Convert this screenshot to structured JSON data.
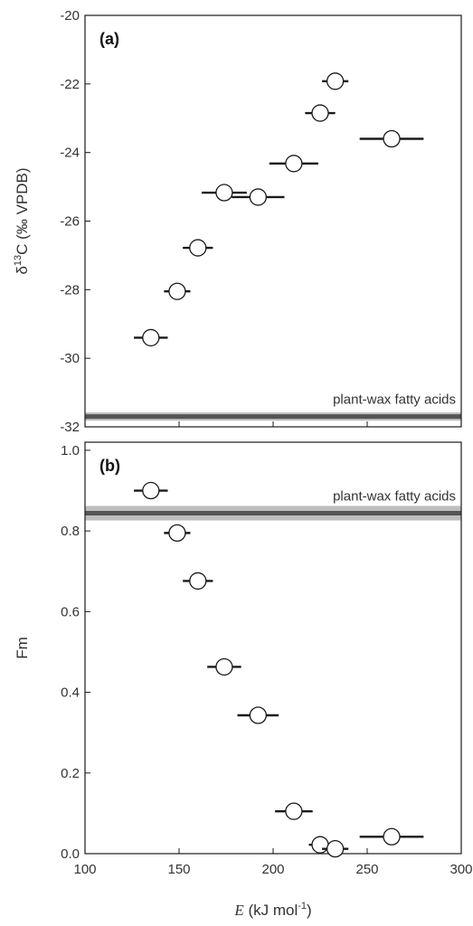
{
  "chart_data": [
    {
      "type": "scatter",
      "panel_label": "(a)",
      "ylabel": "δ¹³C (‰ VPDB)",
      "ylabel_parts": {
        "delta": "δ",
        "superscript": "13",
        "rest": "C (‰ VPDB)"
      },
      "ylim": [
        -32,
        -20
      ],
      "yticks": [
        -20,
        -22,
        -24,
        -26,
        -28,
        -30,
        -32
      ],
      "yticklabels": [
        "-20",
        "-22",
        "-24",
        "-26",
        "-28",
        "-30",
        "-32"
      ],
      "xlim": [
        100,
        300
      ],
      "grid": false,
      "reference_line": {
        "label": "plant-wax fatty acids",
        "value": -31.7,
        "band": 0.12
      },
      "points": [
        {
          "x": 135,
          "y": -29.4,
          "xerr": 9
        },
        {
          "x": 149,
          "y": -28.05,
          "xerr": 7
        },
        {
          "x": 160,
          "y": -26.78,
          "xerr": 8
        },
        {
          "x": 174,
          "y": -25.17,
          "xerr": 12
        },
        {
          "x": 192,
          "y": -25.3,
          "xerr": 14
        },
        {
          "x": 211,
          "y": -24.32,
          "xerr": 13
        },
        {
          "x": 225,
          "y": -22.85,
          "xerr": 8
        },
        {
          "x": 233,
          "y": -21.92,
          "xerr": 7
        },
        {
          "x": 263,
          "y": -23.6,
          "xerr": 17
        }
      ]
    },
    {
      "type": "scatter",
      "panel_label": "(b)",
      "ylabel": "Fm",
      "ylim": [
        0,
        1.02
      ],
      "yticks": [
        0,
        0.2,
        0.4,
        0.6,
        0.8,
        1.0
      ],
      "yticklabels": [
        "0.0",
        "0.2",
        "0.4",
        "0.6",
        "0.8",
        "1.0"
      ],
      "xlim": [
        100,
        300
      ],
      "xticks": [
        100,
        150,
        200,
        250,
        300
      ],
      "xticklabels": [
        "100",
        "150",
        "200",
        "250",
        "300"
      ],
      "xlabel": "E (kJ mol⁻¹)",
      "xlabel_parts": {
        "var": "E",
        "unit": " (kJ mol",
        "superscript": "-1",
        "close": ")"
      },
      "grid": false,
      "reference_line": {
        "label": "plant-wax fatty acids",
        "value": 0.844,
        "band": 0.018
      },
      "points": [
        {
          "x": 135,
          "y": 0.9,
          "xerr": 9
        },
        {
          "x": 149,
          "y": 0.795,
          "xerr": 7
        },
        {
          "x": 160,
          "y": 0.676,
          "xerr": 8
        },
        {
          "x": 174,
          "y": 0.463,
          "xerr": 9
        },
        {
          "x": 192,
          "y": 0.343,
          "xerr": 11
        },
        {
          "x": 211,
          "y": 0.105,
          "xerr": 10
        },
        {
          "x": 225,
          "y": 0.022,
          "xerr": 6
        },
        {
          "x": 233,
          "y": 0.012,
          "xerr": 7
        },
        {
          "x": 263,
          "y": 0.042,
          "xerr": 17
        }
      ]
    }
  ],
  "colors": {
    "axis": "#1a1a1a",
    "text": "#333333",
    "reference_line": "#555555",
    "reference_band": "#bdbdbd",
    "error_bar": "#1a1a1a",
    "marker_fill": "#ffffff",
    "marker_stroke": "#1a1a1a"
  }
}
